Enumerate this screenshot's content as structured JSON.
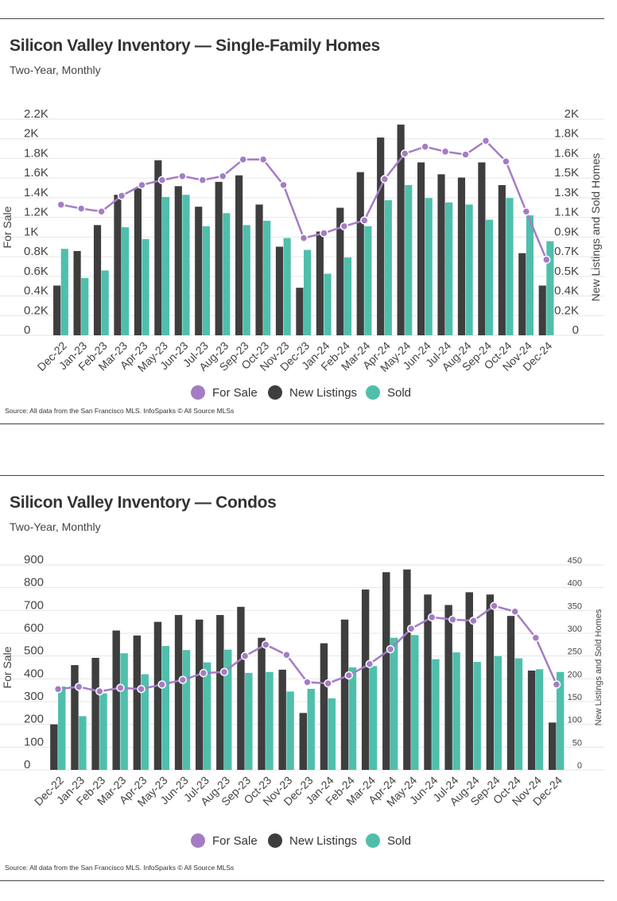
{
  "charts": [
    {
      "title": "Silicon Valley Inventory — Single-Family Homes",
      "subtitle": "Two-Year, Monthly",
      "source": "Source:  All data from the San Francisco MLS. InfoSparks © All Source MLSs"
    },
    {
      "title": "Silicon Valley Inventory — Condos",
      "subtitle": "Two-Year, Monthly",
      "source": "Source:  All data from the San Francisco MLS. InfoSparks © All Source MLSs"
    }
  ],
  "colors": {
    "for_sale": "#a47cc4",
    "new_listings": "#3e3e3e",
    "sold": "#4fbfac",
    "grid": "#e6e6e6"
  },
  "chart_data": [
    {
      "type": "bar",
      "categories": [
        "Dec-22",
        "Jan-23",
        "Feb-23",
        "Mar-23",
        "Apr-23",
        "May-23",
        "Jun-23",
        "Jul-23",
        "Aug-23",
        "Sep-23",
        "Oct-23",
        "Nov-23",
        "Dec-23",
        "Jan-24",
        "Feb-24",
        "Mar-24",
        "Apr-24",
        "May-24",
        "Jun-24",
        "Jul-24",
        "Aug-24",
        "Sep-24",
        "Oct-24",
        "Nov-24",
        "Dec-24"
      ],
      "ylabel": "For Sale",
      "y2label": "New Listings and Sold Homes",
      "ylim": [
        0,
        2200
      ],
      "yticks": [
        "0",
        "0.2K",
        "0.4K",
        "0.6K",
        "0.8K",
        "1K",
        "1.2K",
        "1.4K",
        "1.6K",
        "1.8K",
        "2K",
        "2.2K"
      ],
      "y2lim": [
        0,
        2000
      ],
      "y2ticks": [
        "0",
        "0.2K",
        "0.4K",
        "0.5K",
        "0.7K",
        "0.9K",
        "1.1K",
        "1.3K",
        "1.5K",
        "1.6K",
        "1.8K",
        "2K"
      ],
      "grid": true,
      "legend_position": "bottom",
      "series": [
        {
          "name": "For Sale",
          "kind": "line",
          "axis": "left",
          "values": [
            1330,
            1290,
            1260,
            1420,
            1530,
            1580,
            1620,
            1580,
            1620,
            1790,
            1790,
            1530,
            990,
            1040,
            1110,
            1170,
            1590,
            1850,
            1920,
            1870,
            1840,
            1980,
            1770,
            1260,
            770
          ]
        },
        {
          "name": "New Listings",
          "kind": "bar",
          "axis": "right",
          "values": [
            460,
            780,
            1020,
            1300,
            1360,
            1620,
            1380,
            1190,
            1420,
            1480,
            1210,
            820,
            440,
            960,
            1180,
            1510,
            1830,
            1950,
            1600,
            1490,
            1460,
            1600,
            1390,
            760,
            460
          ]
        },
        {
          "name": "Sold",
          "kind": "bar",
          "axis": "right",
          "values": [
            800,
            530,
            600,
            1000,
            890,
            1280,
            1300,
            1010,
            1130,
            1020,
            1060,
            900,
            790,
            570,
            720,
            1010,
            1250,
            1390,
            1270,
            1230,
            1210,
            1070,
            1270,
            1110,
            870
          ]
        }
      ]
    },
    {
      "type": "bar",
      "categories": [
        "Dec-22",
        "Jan-23",
        "Feb-23",
        "Mar-23",
        "Apr-23",
        "May-23",
        "Jun-23",
        "Jul-23",
        "Aug-23",
        "Sep-23",
        "Oct-23",
        "Nov-23",
        "Dec-23",
        "Jan-24",
        "Feb-24",
        "Mar-24",
        "Apr-24",
        "May-24",
        "Jun-24",
        "Jul-24",
        "Aug-24",
        "Sep-24",
        "Oct-24",
        "Nov-24",
        "Dec-24"
      ],
      "ylabel": "For Sale",
      "y2label": "New Listings and Sold Homes",
      "ylim": [
        0,
        900
      ],
      "yticks": [
        "0",
        "100",
        "200",
        "300",
        "400",
        "500",
        "600",
        "700",
        "800",
        "900"
      ],
      "y2lim": [
        0,
        450
      ],
      "y2ticks": [
        "0",
        "50",
        "100",
        "150",
        "200",
        "250",
        "300",
        "350",
        "400",
        "450"
      ],
      "grid": true,
      "legend_position": "bottom",
      "series": [
        {
          "name": "For Sale",
          "kind": "line",
          "axis": "left",
          "values": [
            355,
            365,
            345,
            360,
            355,
            375,
            395,
            425,
            430,
            500,
            550,
            505,
            385,
            380,
            415,
            465,
            530,
            620,
            670,
            660,
            655,
            720,
            695,
            580,
            375
          ]
        },
        {
          "name": "New Listings",
          "kind": "bar",
          "axis": "right",
          "values": [
            100,
            230,
            246,
            306,
            295,
            325,
            340,
            330,
            340,
            358,
            290,
            220,
            125,
            278,
            330,
            396,
            434,
            440,
            385,
            362,
            390,
            385,
            338,
            218,
            104
          ]
        },
        {
          "name": "Sold",
          "kind": "bar",
          "axis": "right",
          "values": [
            183,
            118,
            168,
            256,
            210,
            272,
            263,
            236,
            264,
            213,
            215,
            172,
            178,
            157,
            225,
            228,
            290,
            296,
            243,
            258,
            237,
            250,
            245,
            221,
            215
          ]
        }
      ]
    }
  ]
}
